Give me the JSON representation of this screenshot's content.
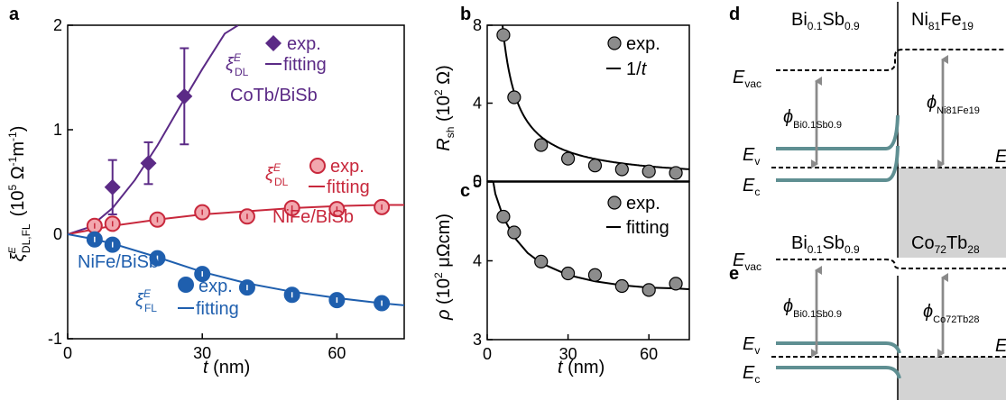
{
  "colors": {
    "purple": "#5b2a86",
    "red": "#c8283c",
    "red_fill": "#f2a7ae",
    "blue": "#1f5fae",
    "gray_marker": "#8c8c8c",
    "teal": "#5f8f92",
    "gray_fill": "#d3d3d3",
    "arrow_gray": "#8a8a8a"
  },
  "panels": {
    "a": "a",
    "b": "b",
    "c": "c",
    "d": "d",
    "e": "e"
  },
  "chart_data": [
    {
      "panel": "a",
      "type": "scatter",
      "xlabel_var": "t",
      "xlabel_unit": " (nm)",
      "ylabel_unit": "(10",
      "ylabel_exp": "5",
      "ylabel_rest": " Ω",
      "ylabel_rest_exp1": "-1",
      "ylabel_rest2": "m",
      "ylabel_rest_exp2": "-1",
      "ylabel_rest3": ")",
      "ylabel_xi": "ξ",
      "ylabel_xi_sup": "E",
      "ylabel_xi_sub": "DL,FL",
      "xlim": [
        0,
        75
      ],
      "ylim": [
        -1,
        2
      ],
      "xticks": [
        "0",
        "30",
        "60"
      ],
      "xtick_vals": [
        0,
        30,
        60
      ],
      "yticks": [
        "-1",
        "0",
        "1",
        "2"
      ],
      "ytick_vals": [
        -1,
        0,
        1,
        2
      ],
      "series": [
        {
          "name": "CoTb/BiSb",
          "key": "purple",
          "marker": "diamond",
          "x": [
            10,
            18,
            26
          ],
          "y": [
            0.45,
            0.68,
            1.32
          ],
          "err": [
            0.26,
            0.2,
            0.46
          ],
          "fit_x": [
            0,
            5,
            10,
            15,
            20,
            25,
            30,
            35,
            38
          ],
          "fit_y": [
            0,
            0.07,
            0.25,
            0.52,
            0.85,
            1.22,
            1.58,
            1.92,
            2.0
          ]
        },
        {
          "name": "NiFe/BiSb",
          "key": "red",
          "marker": "circle",
          "x": [
            6,
            10,
            20,
            30,
            40,
            50,
            60,
            70
          ],
          "y": [
            0.08,
            0.1,
            0.14,
            0.21,
            0.17,
            0.25,
            0.24,
            0.26
          ],
          "err": [
            0,
            0,
            0,
            0,
            0,
            0,
            0,
            0
          ],
          "fit_x": [
            0,
            5,
            10,
            20,
            30,
            40,
            50,
            60,
            70,
            75
          ],
          "fit_y": [
            0,
            0.04,
            0.08,
            0.14,
            0.19,
            0.22,
            0.25,
            0.27,
            0.28,
            0.28
          ]
        },
        {
          "name": "NiFe/BiSb",
          "key": "blue",
          "marker": "circle",
          "x": [
            6,
            10,
            20,
            30,
            40,
            50,
            60,
            70
          ],
          "y": [
            -0.05,
            -0.1,
            -0.23,
            -0.38,
            -0.51,
            -0.58,
            -0.63,
            -0.66
          ],
          "err": [
            0,
            0,
            0,
            0,
            0,
            0,
            0,
            0
          ],
          "fit_x": [
            0,
            5,
            10,
            20,
            30,
            40,
            50,
            60,
            70,
            75
          ],
          "fit_y": [
            0,
            -0.04,
            -0.09,
            -0.22,
            -0.36,
            -0.47,
            -0.55,
            -0.61,
            -0.66,
            -0.68
          ]
        }
      ],
      "legends": {
        "purple": {
          "sym": "ξ",
          "sup": "E",
          "sub": "DL",
          "exp": "exp.",
          "fit": "fitting",
          "label": "CoTb/BiSb"
        },
        "red": {
          "sym": "ξ",
          "sup": "E",
          "sub": "DL",
          "exp": "exp.",
          "fit": "fitting",
          "label": "NiFe/BiSb"
        },
        "blue": {
          "sym": "ξ",
          "sup": "E",
          "sub": "FL",
          "exp": "exp.",
          "fit": "fitting",
          "label": "NiFe/BiSb"
        }
      }
    },
    {
      "panel": "b",
      "type": "scatter",
      "ylabel_var": "R",
      "ylabel_sub": "sh",
      "ylabel_unit": " (10",
      "ylabel_exp": "2",
      "ylabel_unit2": " Ω)",
      "xlim": [
        0,
        75
      ],
      "ylim": [
        0,
        8
      ],
      "yticks": [
        "0",
        "4",
        "8"
      ],
      "ytick_vals": [
        0,
        4,
        8
      ],
      "legend_exp": "exp.",
      "legend_fit": "1/",
      "legend_fit_var": "t",
      "x": [
        6,
        10,
        20,
        30,
        40,
        50,
        60,
        70
      ],
      "y": [
        7.5,
        4.3,
        1.85,
        1.15,
        0.8,
        0.6,
        0.5,
        0.42
      ],
      "fit_a": 45.5
    },
    {
      "panel": "c",
      "type": "scatter",
      "xlabel_var": "t",
      "xlabel_unit": " (nm)",
      "ylabel_var": "ρ",
      "ylabel_unit": " (10",
      "ylabel_exp": "2",
      "ylabel_unit2": " μΩcm)",
      "xlim": [
        0,
        75
      ],
      "ylim": [
        3,
        5
      ],
      "xticks": [
        "0",
        "30",
        "60"
      ],
      "xtick_vals": [
        0,
        30,
        60
      ],
      "yticks": [
        "3",
        "4",
        "5"
      ],
      "ytick_vals": [
        3,
        4,
        5
      ],
      "legend_exp": "exp.",
      "legend_fit": "fitting",
      "x": [
        6,
        10,
        20,
        30,
        40,
        50,
        60,
        70
      ],
      "y": [
        4.56,
        4.36,
        3.99,
        3.84,
        3.82,
        3.68,
        3.63,
        3.71
      ],
      "fit_x": [
        1,
        3,
        6,
        10,
        15,
        20,
        30,
        40,
        50,
        60,
        70,
        75
      ],
      "fit_y": [
        5.25,
        4.85,
        4.55,
        4.3,
        4.1,
        3.97,
        3.82,
        3.74,
        3.69,
        3.66,
        3.65,
        3.64
      ]
    }
  ],
  "diagram_d": {
    "left_mat": "Bi",
    "left_sub1": "0.1",
    "left_mid": "Sb",
    "left_sub2": "0.9",
    "right_mat": "Ni",
    "right_sub1": "81",
    "right_mid": "Fe",
    "right_sub2": "19",
    "evac": "E",
    "evac_sub": "vac",
    "ev": "E",
    "ev_sub": "v",
    "ec": "E",
    "ec_sub": "c",
    "ef": "E",
    "phi": "ϕ",
    "phi_left_sub": "Bi0.1Sb0.9",
    "phi_right_sub": "Ni81Fe19"
  },
  "diagram_e": {
    "left_mat": "Bi",
    "left_sub1": "0.1",
    "left_mid": "Sb",
    "left_sub2": "0.9",
    "right_mat": "Co",
    "right_sub1": "72",
    "right_mid": "Tb",
    "right_sub2": "28",
    "evac": "E",
    "evac_sub": "vac",
    "ev": "E",
    "ev_sub": "v",
    "ec": "E",
    "ec_sub": "c",
    "ef": "E",
    "phi": "ϕ",
    "phi_left_sub": "Bi0.1Sb0.9",
    "phi_right_sub": "Co72Tb28"
  }
}
